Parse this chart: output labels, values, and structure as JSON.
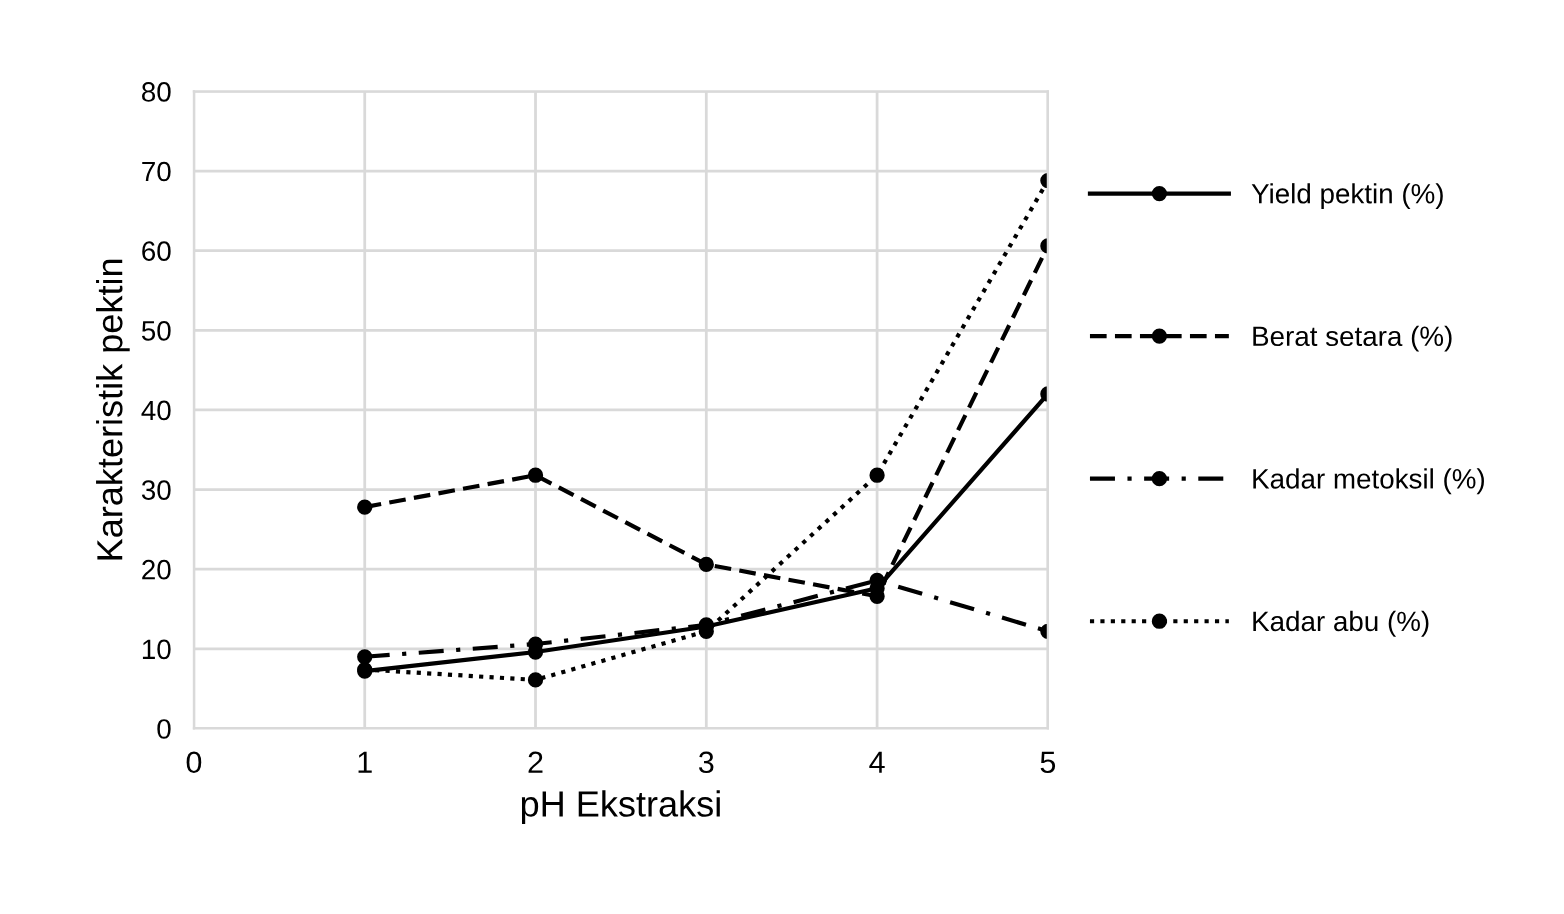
{
  "chart_data": {
    "type": "line",
    "xlabel": "pH Ekstraksi",
    "ylabel": "Karakteristik pektin",
    "x": [
      1,
      2,
      3,
      4,
      5
    ],
    "series": [
      {
        "name": "Yield pektin (%)",
        "color": "#000000",
        "line_style": "solid",
        "values": [
          7.2,
          9.6,
          12.8,
          17.6,
          42
        ]
      },
      {
        "name": "Berat setara (%)",
        "color": "#000000",
        "line_style": "dashed",
        "values": [
          27.8,
          31.8,
          20.6,
          16.6,
          60.6
        ]
      },
      {
        "name": "Kadar metoksil (%)",
        "color": "#000000",
        "line_style": "dashdot",
        "values": [
          9,
          10.6,
          13,
          18.6,
          12.2
        ]
      },
      {
        "name": "Kadar abu (%)",
        "color": "#000000",
        "line_style": "dotted",
        "values": [
          7.4,
          6.1,
          12.2,
          31.8,
          68.8
        ]
      }
    ],
    "xlim": [
      0,
      5
    ],
    "xticks": [
      0,
      1,
      2,
      3,
      4,
      5
    ],
    "ylim": [
      0,
      80
    ],
    "yticks": [
      0,
      10,
      20,
      30,
      40,
      50,
      60,
      70,
      80
    ],
    "grid": true,
    "legend": "right",
    "marker": "circle"
  }
}
